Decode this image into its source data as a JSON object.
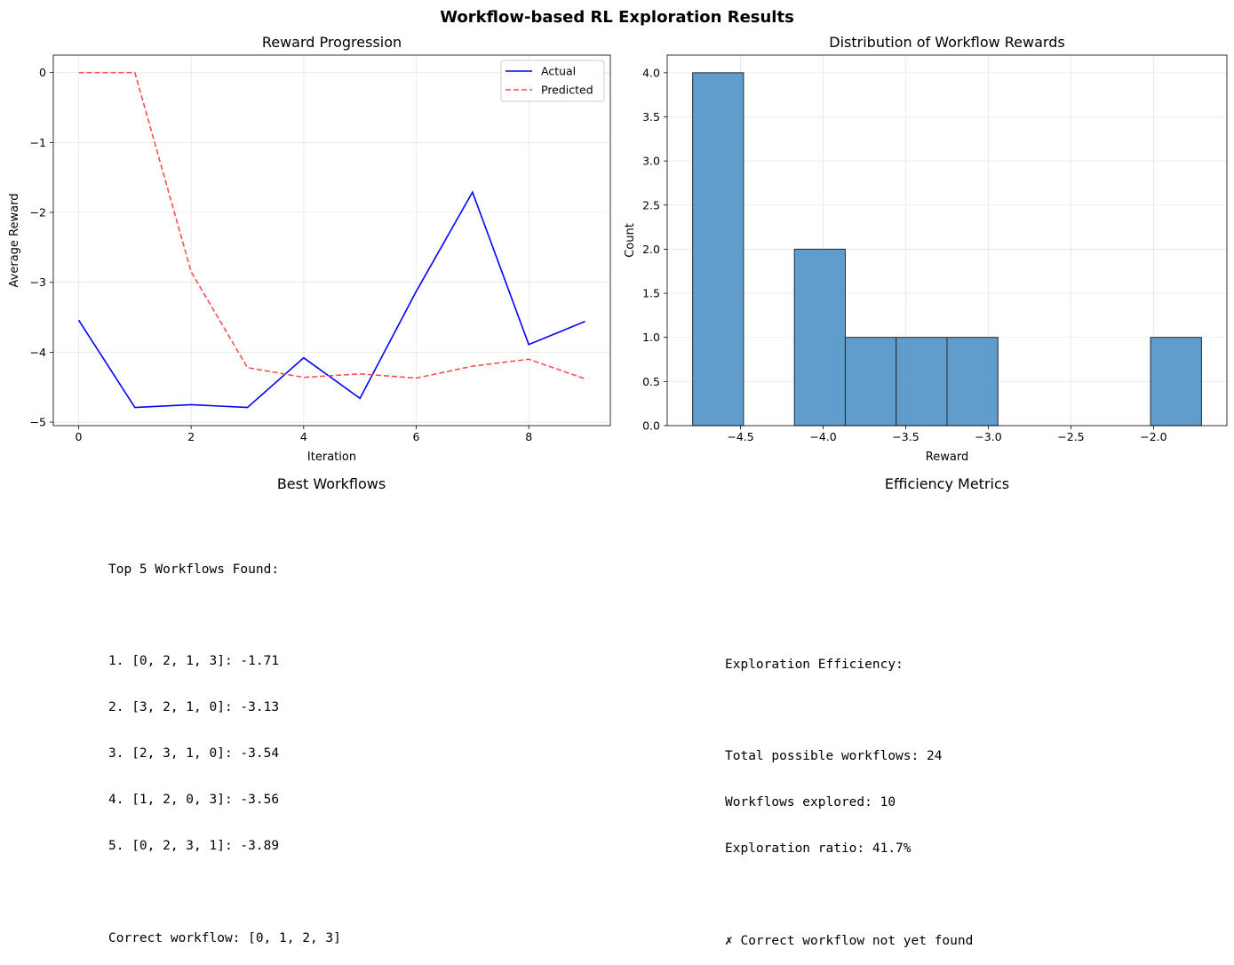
{
  "figure": {
    "title": "Workflow-based RL Exploration Results"
  },
  "chart_data": [
    {
      "type": "line",
      "title": "Reward Progression",
      "xlabel": "Iteration",
      "ylabel": "Average Reward",
      "x": [
        0,
        1,
        2,
        3,
        4,
        5,
        6,
        7,
        8,
        9
      ],
      "xlim": [
        -0.45,
        9.45
      ],
      "ylim": [
        -5.05,
        0.25
      ],
      "xticks": [
        0,
        2,
        4,
        6,
        8
      ],
      "xtick_labels": [
        "0",
        "2",
        "4",
        "6",
        "8"
      ],
      "yticks": [
        0,
        -1,
        -2,
        -3,
        -4,
        -5
      ],
      "ytick_labels": [
        "0",
        "−1",
        "−2",
        "−3",
        "−4",
        "−5"
      ],
      "grid": true,
      "legend_placement": "top-right",
      "series": [
        {
          "name": "Actual",
          "color": "#0000ff",
          "style": "solid",
          "values": [
            -3.54,
            -4.79,
            -4.75,
            -4.79,
            -4.08,
            -4.66,
            -3.13,
            -1.71,
            -3.89,
            -3.56
          ]
        },
        {
          "name": "Predicted",
          "color": "#ff4444",
          "style": "dashed",
          "values": [
            0.0,
            0.0,
            -2.85,
            -4.22,
            -4.36,
            -4.31,
            -4.37,
            -4.2,
            -4.1,
            -4.38
          ]
        }
      ]
    },
    {
      "type": "bar",
      "subtype": "histogram",
      "title": "Distribution of Workflow Rewards",
      "xlabel": "Reward",
      "ylabel": "Count",
      "bin_edges": [
        -4.79,
        -4.482,
        -4.174,
        -3.866,
        -3.558,
        -3.25,
        -2.942,
        -2.634,
        -2.326,
        -2.018,
        -1.71
      ],
      "counts": [
        4,
        0,
        2,
        1,
        1,
        1,
        0,
        0,
        0,
        1
      ],
      "xlim": [
        -4.944,
        -1.556
      ],
      "ylim": [
        0,
        4.2
      ],
      "xticks": [
        -4.5,
        -4.0,
        -3.5,
        -3.0,
        -2.5,
        -2.0
      ],
      "xtick_labels": [
        "−4.5",
        "−4.0",
        "−3.5",
        "−3.0",
        "−2.5",
        "−2.0"
      ],
      "yticks": [
        0,
        0.5,
        1.0,
        1.5,
        2.0,
        2.5,
        3.0,
        3.5,
        4.0
      ],
      "ytick_labels": [
        "0.0",
        "0.5",
        "1.0",
        "1.5",
        "2.0",
        "2.5",
        "3.0",
        "3.5",
        "4.0"
      ],
      "grid": true,
      "bar_color": "#4b8fc5",
      "edge_color": "#1f2a33"
    }
  ],
  "best_workflows": {
    "title": "Best Workflows",
    "heading": "Top 5 Workflows Found:",
    "items": [
      "1. [0, 2, 1, 3]: -1.71",
      "2. [3, 2, 1, 0]: -3.13",
      "3. [2, 3, 1, 0]: -3.54",
      "4. [1, 2, 0, 3]: -3.56",
      "5. [0, 2, 3, 1]: -3.89"
    ],
    "correct": "Correct workflow: [0, 1, 2, 3]"
  },
  "efficiency": {
    "title": "Efficiency Metrics",
    "heading": "Exploration Efficiency:",
    "total": "Total possible workflows: 24",
    "explored": "Workflows explored: 10",
    "ratio": "Exploration ratio: 41.7%",
    "status": "✗ Correct workflow not yet found"
  }
}
